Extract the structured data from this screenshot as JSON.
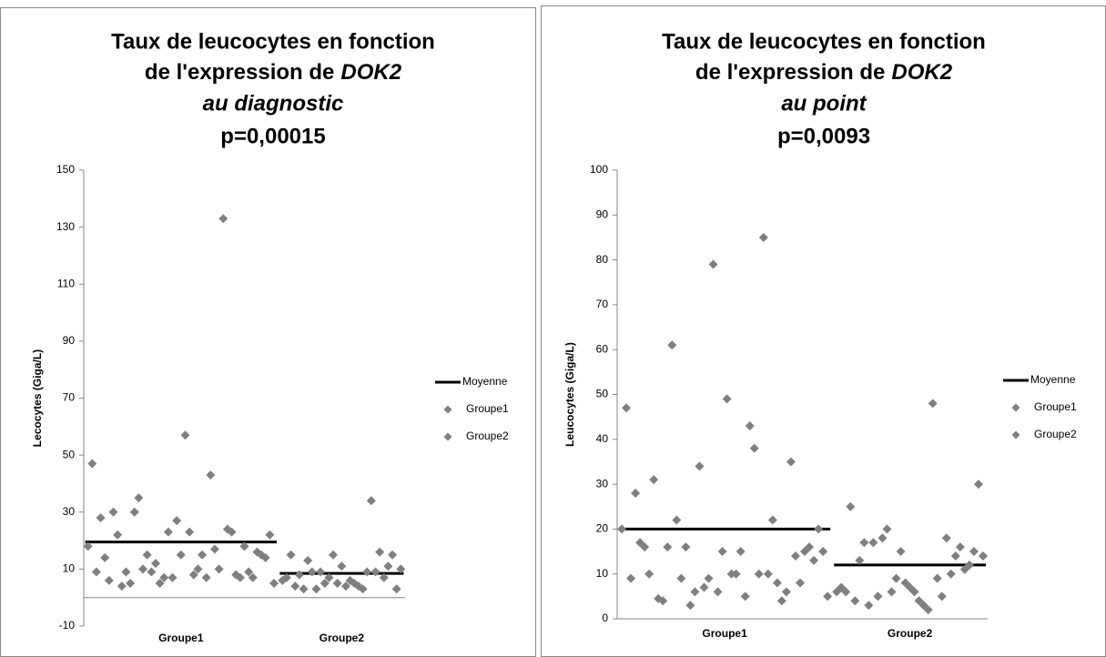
{
  "chart_data": [
    {
      "type": "scatter",
      "title": [
        "Taux de leucocytes en fonction",
        "de l'expression de",
        "DOK2",
        "au diagnostic",
        "p=0,00015"
      ],
      "y_label": "Lecocytes (Giga/L)",
      "categories": [
        "Groupe1",
        "Groupe2"
      ],
      "xlim": [
        0,
        76
      ],
      "ylim": [
        -10,
        150
      ],
      "yticks": [
        -10,
        10,
        30,
        50,
        70,
        90,
        110,
        130,
        150
      ],
      "legend": "right",
      "series": [
        {
          "name": "Moyenne",
          "color": "#000000",
          "values": [
            19.5,
            8.5
          ]
        },
        {
          "name": "Groupe1",
          "color": "#7f7f7f",
          "x": [
            1,
            2,
            3,
            4,
            5,
            6,
            7,
            8,
            9,
            10,
            11,
            12,
            13,
            14,
            15,
            16,
            17,
            18,
            19,
            20,
            21,
            22,
            23,
            24,
            25,
            26,
            27,
            28,
            29,
            30,
            31,
            32,
            33,
            34,
            35,
            36,
            37,
            38,
            39,
            40,
            41,
            42,
            43,
            44,
            45
          ],
          "values": [
            18,
            47,
            9,
            28,
            14,
            6,
            30,
            22,
            4,
            9,
            5,
            30,
            35,
            10,
            15,
            9,
            12,
            5,
            7,
            23,
            7,
            27,
            15,
            57,
            23,
            8,
            10,
            15,
            7,
            43,
            17,
            10,
            133,
            24,
            23,
            8,
            7,
            18,
            9,
            7,
            16,
            15,
            14,
            22,
            5
          ]
        },
        {
          "name": "Groupe2",
          "color": "#7f7f7f",
          "x": [
            47,
            48,
            49,
            50,
            51,
            52,
            53,
            54,
            55,
            56,
            57,
            58,
            59,
            60,
            61,
            62,
            63,
            64,
            65,
            66,
            67,
            68,
            69,
            70,
            71,
            72,
            73,
            74,
            75
          ],
          "values": [
            6,
            7,
            15,
            4,
            8,
            3,
            13,
            9,
            3,
            9,
            5,
            7,
            15,
            5,
            11,
            4,
            6,
            5,
            4,
            3,
            9,
            34,
            9,
            16,
            7,
            11,
            15,
            3,
            10
          ]
        }
      ]
    },
    {
      "type": "scatter",
      "title": [
        "Taux de leucocytes en fonction",
        "de l'expression de",
        "DOK2",
        "au point",
        "p=0,0093"
      ],
      "y_label": "Leucocytes (Giga/L)",
      "categories": [
        "Groupe1",
        "Groupe2"
      ],
      "xlim": [
        0,
        81
      ],
      "ylim": [
        0,
        100
      ],
      "yticks": [
        0,
        10,
        20,
        30,
        40,
        50,
        60,
        70,
        80,
        90,
        100
      ],
      "legend": "right",
      "series": [
        {
          "name": "Moyenne",
          "color": "#000000",
          "values": [
            20,
            12
          ]
        },
        {
          "name": "Groupe1",
          "color": "#7f7f7f",
          "x": [
            1,
            2,
            3,
            4,
            5,
            6,
            7,
            8,
            9,
            10,
            11,
            12,
            13,
            14,
            15,
            16,
            17,
            18,
            19,
            20,
            21,
            22,
            23,
            24,
            25,
            26,
            27,
            28,
            29,
            30,
            31,
            32,
            33,
            34,
            35,
            36,
            37,
            38,
            39,
            40,
            41,
            42,
            43,
            44,
            45,
            46
          ],
          "values": [
            20,
            47,
            9,
            28,
            17,
            16,
            10,
            31,
            4.5,
            4,
            16,
            61,
            22,
            9,
            16,
            3,
            6,
            34,
            7,
            9,
            79,
            6,
            15,
            49,
            10,
            10,
            15,
            5,
            43,
            38,
            10,
            85,
            10,
            22,
            8,
            4,
            6,
            35,
            14,
            8,
            15,
            16,
            13,
            20,
            15,
            5
          ]
        },
        {
          "name": "Groupe2",
          "color": "#7f7f7f",
          "x": [
            48,
            49,
            50,
            51,
            52,
            53,
            54,
            55,
            56,
            57,
            58,
            59,
            60,
            61,
            62,
            63,
            64,
            65,
            66,
            67,
            68,
            69,
            70,
            71,
            72,
            73,
            74,
            75,
            76,
            77,
            78,
            79,
            80
          ],
          "values": [
            6,
            7,
            6,
            25,
            4,
            13,
            17,
            3,
            17,
            5,
            18,
            20,
            6,
            9,
            15,
            8,
            7,
            6,
            4,
            3,
            2,
            48,
            9,
            5,
            18,
            10,
            14,
            16,
            11,
            12,
            15,
            30,
            14
          ]
        }
      ]
    }
  ]
}
